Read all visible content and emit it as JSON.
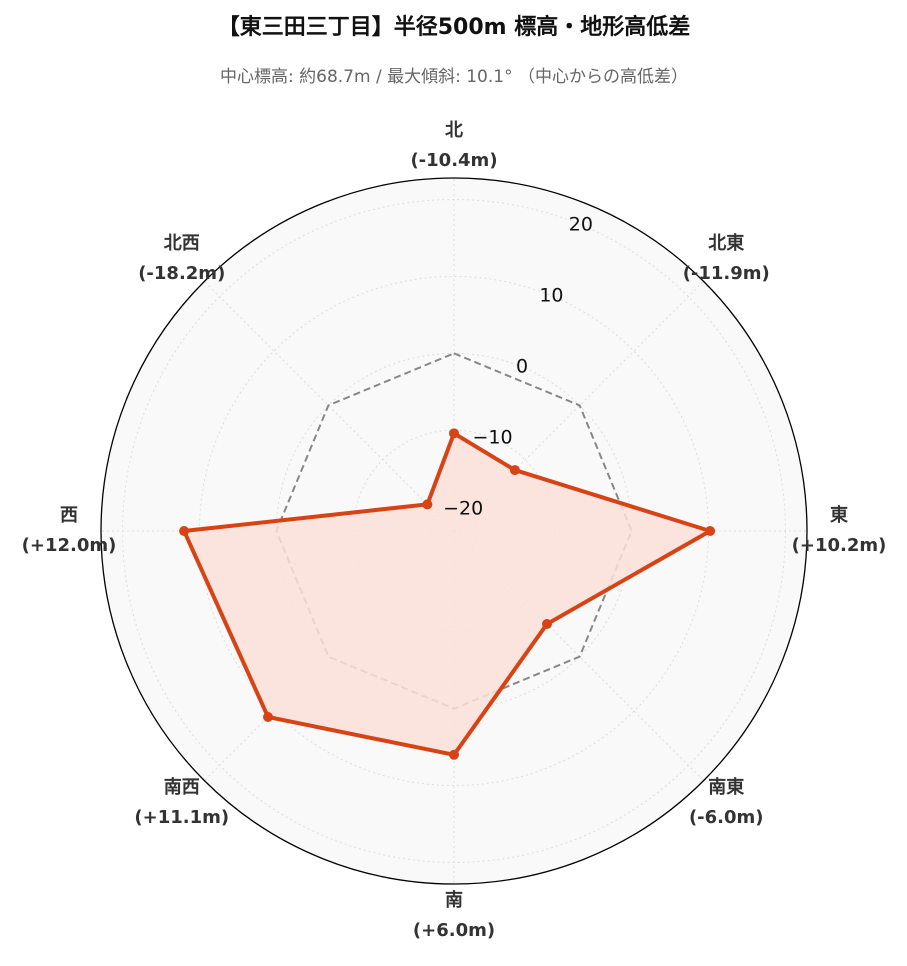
{
  "chart_data": {
    "type": "radar",
    "title": "【東三田三丁目】半径500m 標高・地形高低差",
    "subtitle": "中心標高: 約68.7m / 最大傾斜: 10.1° （中心からの高低差）",
    "categories": [
      "北",
      "北東",
      "東",
      "南東",
      "南",
      "南西",
      "西",
      "北西"
    ],
    "values": [
      -10.4,
      -11.9,
      10.2,
      -6.0,
      6.0,
      11.1,
      12.0,
      -18.2
    ],
    "value_labels": [
      "(-10.4m)",
      "(-11.9m)",
      "(+10.2m)",
      "(-6.0m)",
      "(+6.0m)",
      "(+11.1m)",
      "(+12.0m)",
      "(-18.2m)"
    ],
    "color": "#d84315",
    "fill_color": "#fde0d9",
    "baseline": 0,
    "ylim": [
      -23.1,
      22.8
    ],
    "yticks": [
      {
        "value": -20,
        "label": "−20"
      },
      {
        "value": -10,
        "label": "−10"
      },
      0,
      10,
      20
    ],
    "grid": true
  }
}
